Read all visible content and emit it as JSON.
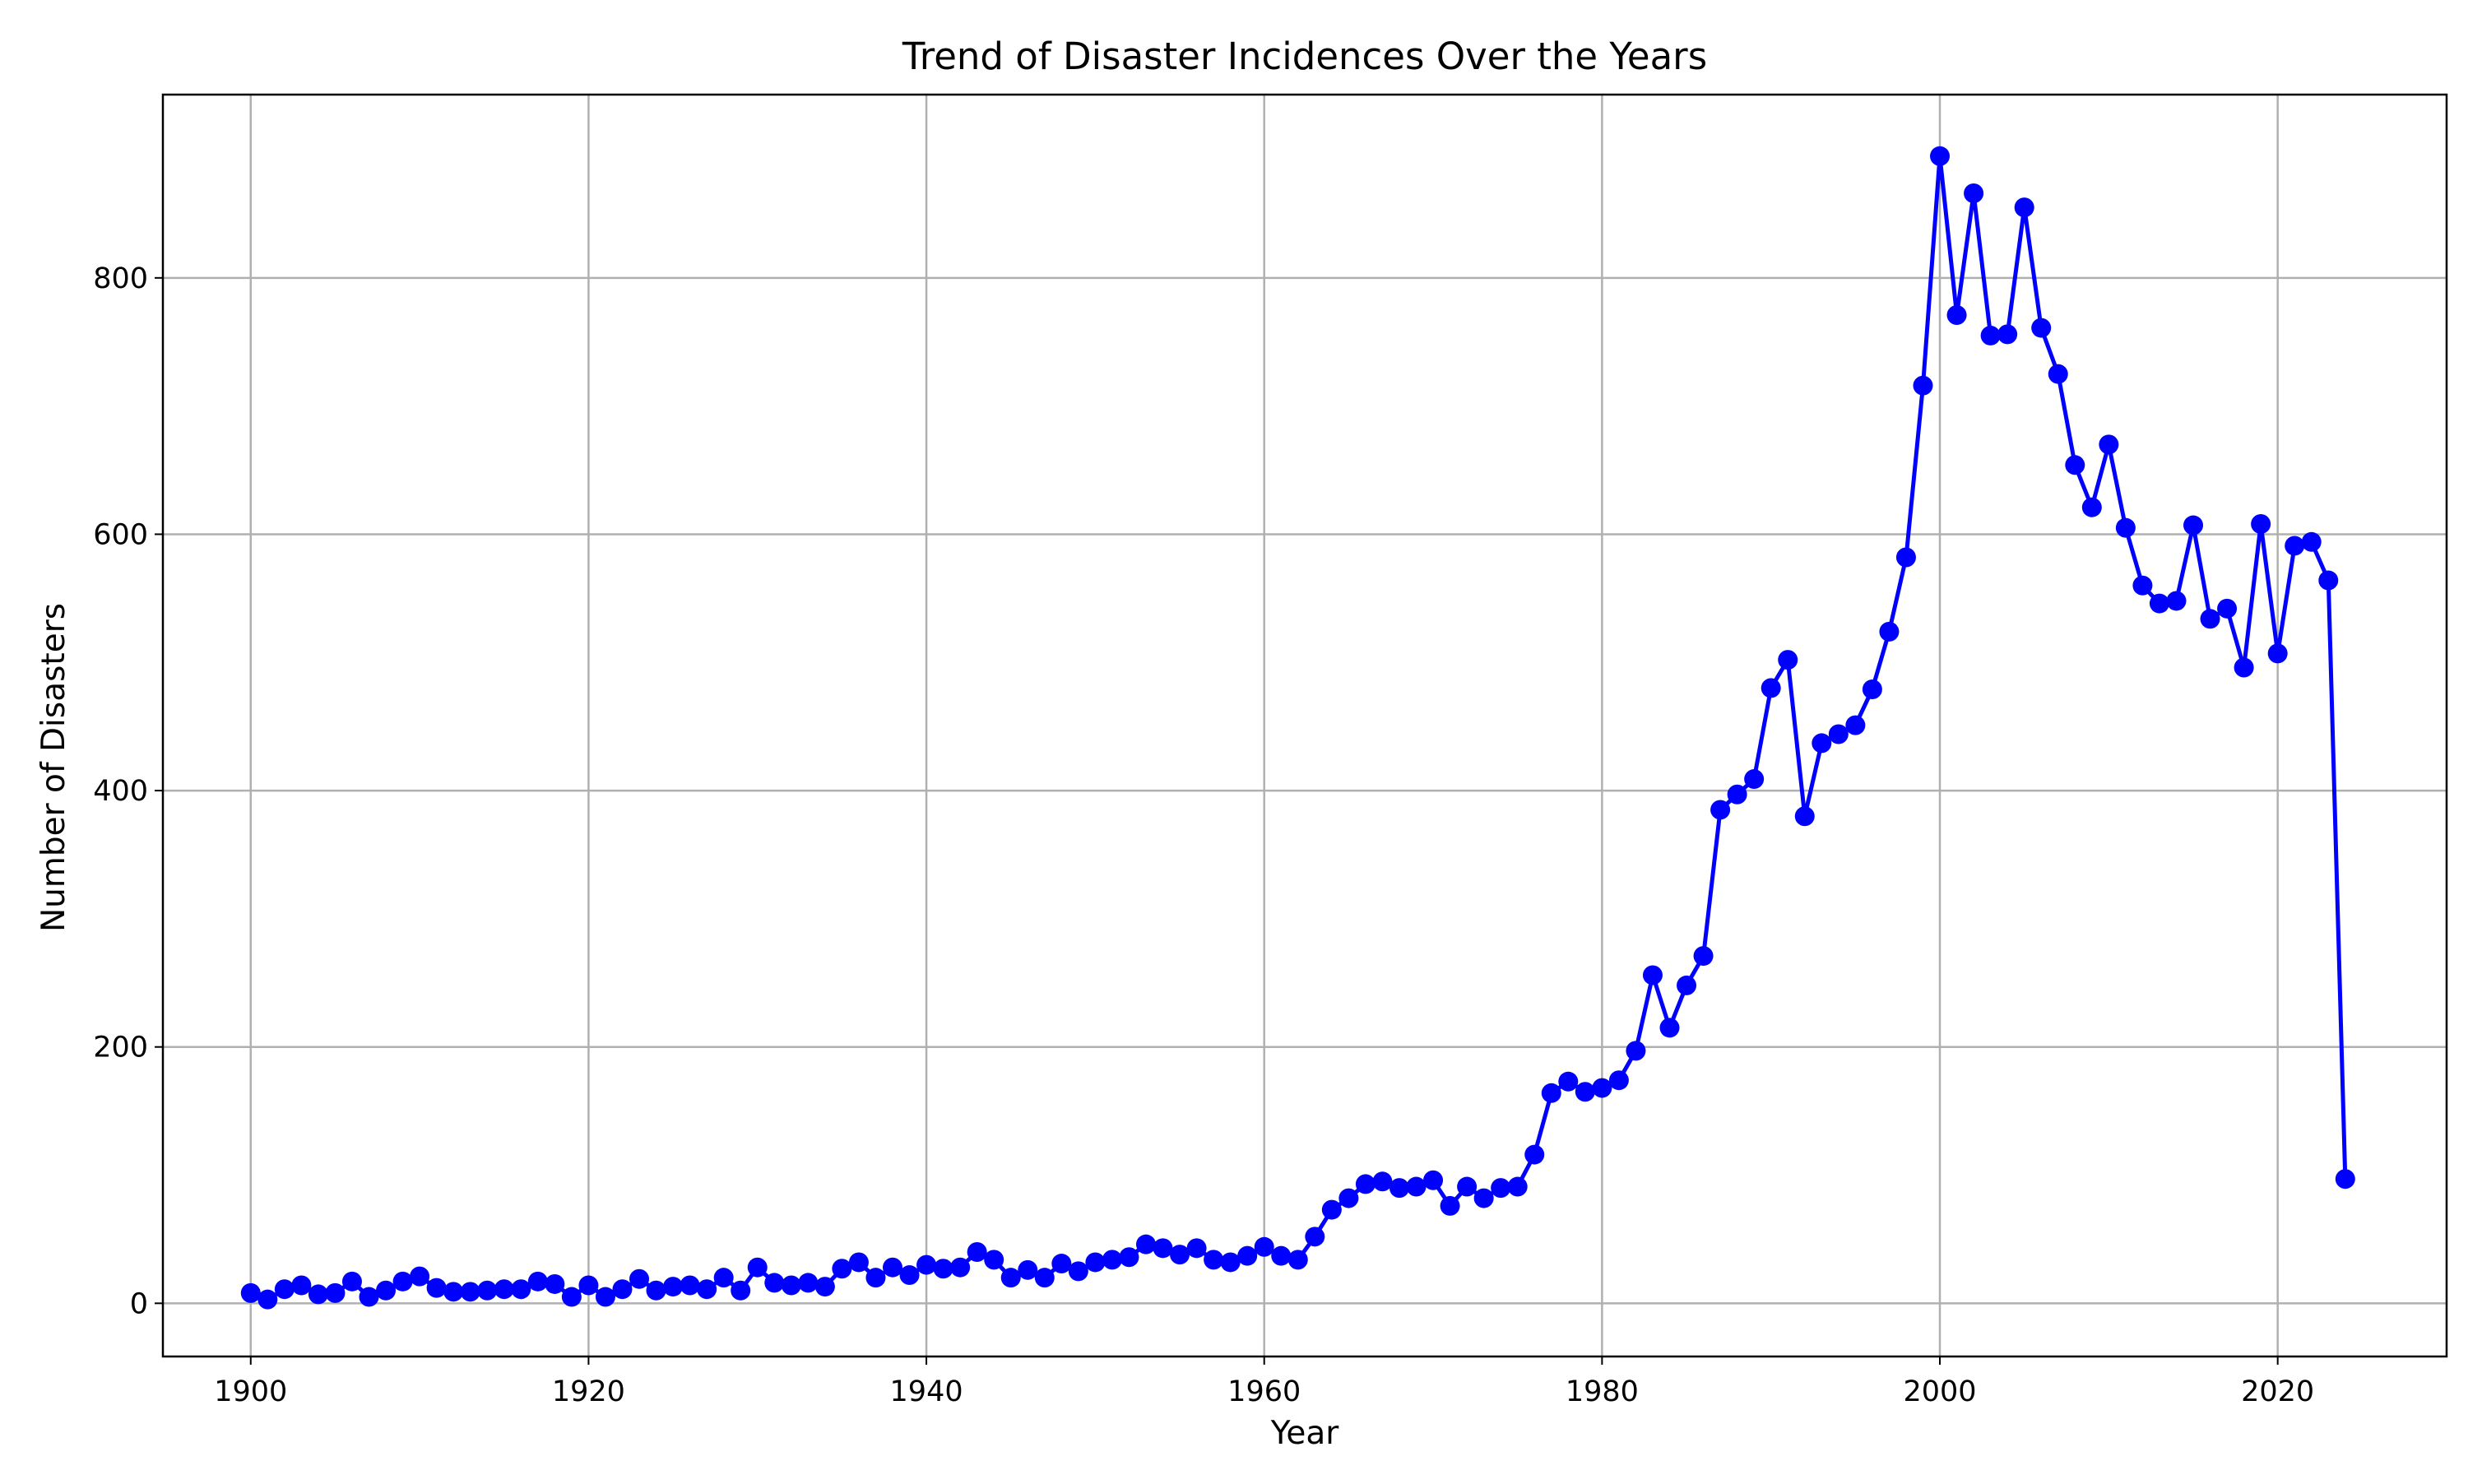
{
  "chart_data": {
    "type": "line",
    "title": "Trend of Disaster Incidences Over the Years",
    "xlabel": "Year",
    "ylabel": "Number of Disasters",
    "xlim": [
      1894.8,
      2030.0
    ],
    "ylim": [
      -41.5,
      943.0
    ],
    "xticks": [
      1900,
      1920,
      1940,
      1960,
      1980,
      2000,
      2020
    ],
    "yticks": [
      0,
      200,
      400,
      600,
      800
    ],
    "grid": true,
    "line_color": "#0000ff",
    "marker": "circle",
    "series": [
      {
        "x": [
          1900,
          1901,
          1902,
          1903,
          1904,
          1905,
          1906,
          1907,
          1908,
          1909,
          1910,
          1911,
          1912,
          1913,
          1914,
          1915,
          1916,
          1917,
          1918,
          1919,
          1920,
          1921,
          1922,
          1923,
          1924,
          1925,
          1926,
          1927,
          1928,
          1929,
          1930,
          1931,
          1932,
          1933,
          1934,
          1935,
          1936,
          1937,
          1938,
          1939,
          1940,
          1941,
          1942,
          1943,
          1944,
          1945,
          1946,
          1947,
          1948,
          1949,
          1950,
          1951,
          1952,
          1953,
          1954,
          1955,
          1956,
          1957,
          1958,
          1959,
          1960,
          1961,
          1962,
          1963,
          1964,
          1965,
          1966,
          1967,
          1968,
          1969,
          1970,
          1971,
          1972,
          1973,
          1974,
          1975,
          1976,
          1977,
          1978,
          1979,
          1980,
          1981,
          1982,
          1983,
          1984,
          1985,
          1986,
          1987,
          1988,
          1989,
          1990,
          1991,
          1992,
          1993,
          1994,
          1995,
          1996,
          1997,
          1998,
          1999,
          2000,
          2001,
          2002,
          2003,
          2004,
          2005,
          2006,
          2007,
          2008,
          2009,
          2010,
          2011,
          2012,
          2013,
          2014,
          2015,
          2016,
          2017,
          2018,
          2019,
          2020,
          2021,
          2022,
          2023,
          2024
        ],
        "values": [
          8,
          3,
          11,
          14,
          7,
          8,
          17,
          5,
          10,
          17,
          21,
          12,
          9,
          9,
          10,
          11,
          11,
          17,
          15,
          5,
          14,
          5,
          11,
          19,
          10,
          13,
          14,
          11,
          20,
          10,
          28,
          16,
          14,
          16,
          13,
          27,
          32,
          20,
          28,
          22,
          30,
          27,
          28,
          40,
          34,
          20,
          26,
          20,
          31,
          25,
          32,
          34,
          36,
          46,
          43,
          38,
          43,
          34,
          32,
          37,
          44,
          37,
          34,
          52,
          73,
          82,
          93,
          95,
          90,
          91,
          96,
          76,
          91,
          82,
          90,
          91,
          116,
          164,
          173,
          165,
          168,
          174,
          197,
          256,
          215,
          248,
          271,
          385,
          397,
          409,
          480,
          502,
          380,
          437,
          444,
          451,
          479,
          524,
          582,
          716,
          895,
          771,
          866,
          755,
          756,
          855,
          761,
          725,
          654,
          621,
          670,
          605,
          560,
          546,
          548,
          607,
          534,
          542,
          496,
          608,
          507,
          591,
          594,
          564,
          97
        ]
      }
    ]
  }
}
